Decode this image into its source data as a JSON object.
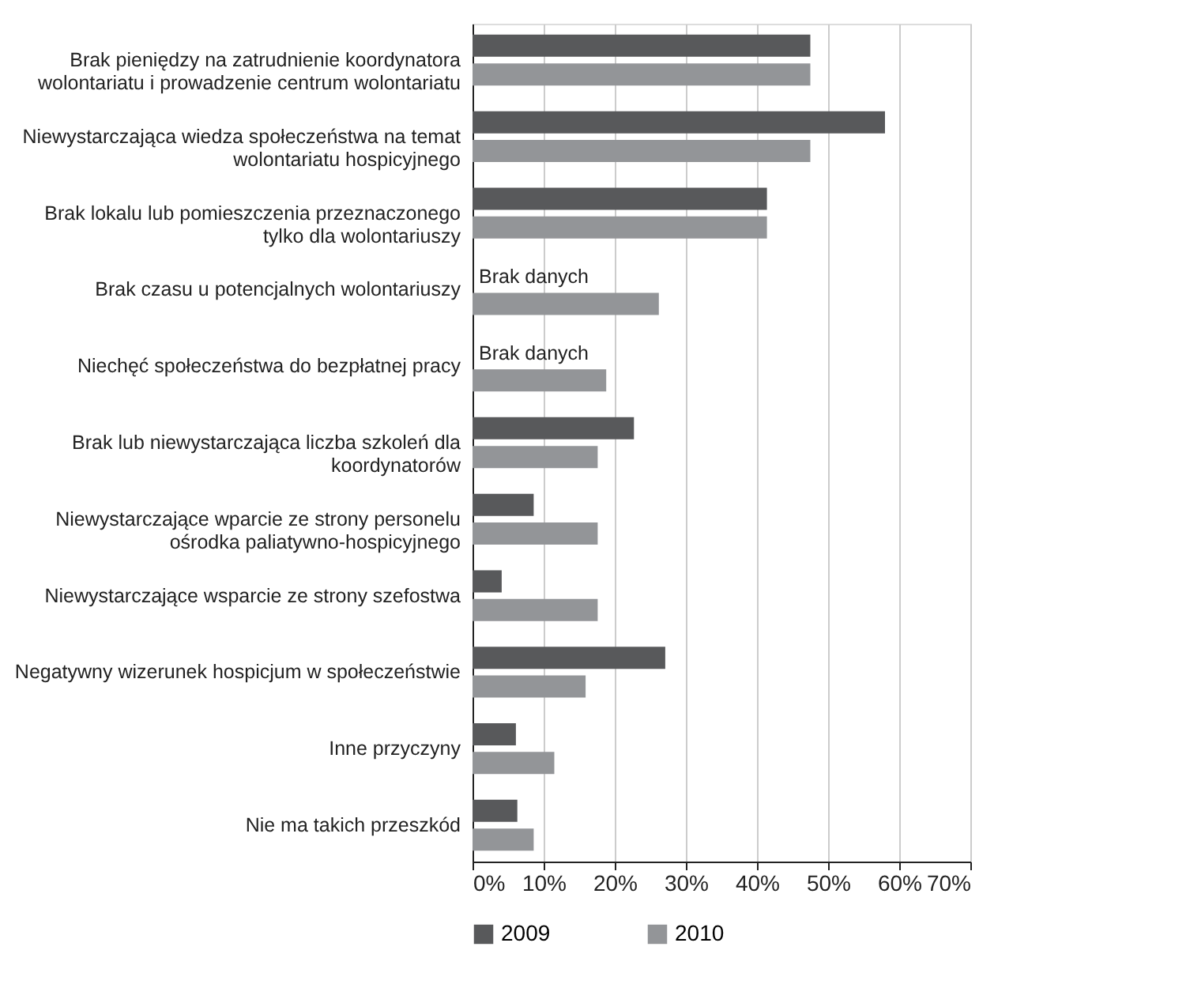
{
  "chart_data": {
    "type": "bar",
    "orientation": "horizontal",
    "categories": [
      "Brak pieniędzy na zatrudnienie koordynatora wolontariatu i prowadzenie centrum wolontariatu",
      "Niewystarczająca wiedza społeczeństwa na temat wolontariatu hospicyjnego",
      "Brak lokalu lub pomieszczenia przeznaczonego tylko dla wolontariuszy",
      "Brak czasu u potencjalnych wolontariuszy",
      "Niechęć społeczeństwa do bezpłatnej pracy",
      "Brak lub niewystarczająca liczba szkoleń dla koordynatorów",
      "Niewystarczające wparcie ze strony personelu ośrodka paliatywno-hospicyjnego",
      "Niewystarczające wsparcie ze strony szefostwa",
      "Negatywny wizerunek hospicjum w społeczeństwie",
      "Inne przyczyny",
      "Nie ma takich przeszkód"
    ],
    "series": [
      {
        "name": "2009",
        "color": "#58595b",
        "values": [
          47.5,
          58.0,
          41.4,
          null,
          null,
          22.7,
          8.6,
          4.1,
          27.1,
          6.1,
          6.3
        ]
      },
      {
        "name": "2010",
        "color": "#939598",
        "values": [
          47.5,
          47.5,
          41.4,
          26.2,
          18.8,
          17.6,
          17.6,
          17.6,
          15.9,
          11.5,
          8.6
        ]
      }
    ],
    "xlim": [
      0,
      70
    ],
    "xticks": [
      {
        "value": 0,
        "label": "0%"
      },
      {
        "value": 10,
        "label": "10%"
      },
      {
        "value": 20,
        "label": "20%"
      },
      {
        "value": 30,
        "label": "30%"
      },
      {
        "value": 40,
        "label": "40%"
      },
      {
        "value": 50,
        "label": "50%"
      },
      {
        "value": 60,
        "label": "60%"
      },
      {
        "value": 70,
        "label": "70%"
      }
    ],
    "annotations": [
      {
        "text": "Brak danych",
        "x": 0,
        "y": "Brak czasu u potencjalnych wolontariuszy"
      },
      {
        "text": "Brak danych",
        "x": 0,
        "y": "Niechęć społeczeństwa do bezpłatnej pracy"
      }
    ],
    "grid": "x",
    "legend": "bottom"
  }
}
